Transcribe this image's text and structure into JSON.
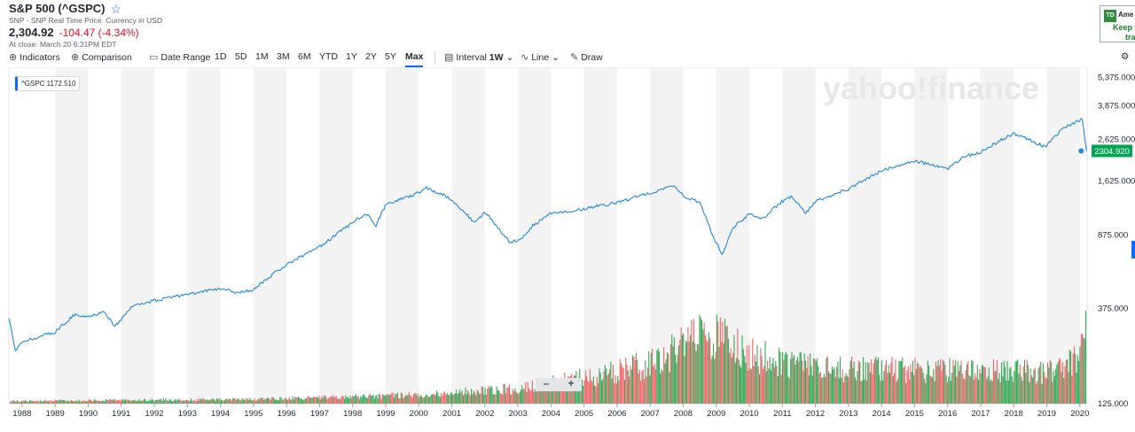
{
  "header": {
    "title": "S&P 500 (^GSPC)",
    "source": "SNP - SNP Real Time Price. Currency in USD",
    "price": "2,304.92",
    "change": "-104.47 (-4.34%)",
    "close_time": "At close: March 20 6:31PM EDT",
    "star_icon": "star-outline-icon"
  },
  "ad": {
    "logo": "TD",
    "name": "Ame",
    "line1": "Keep c",
    "line2": "tra"
  },
  "toolbar": {
    "indicators": "Indicators",
    "comparison": "Comparison",
    "date_range": "Date Range",
    "ranges": [
      "1D",
      "5D",
      "1M",
      "3M",
      "6M",
      "YTD",
      "1Y",
      "2Y",
      "5Y",
      "Max"
    ],
    "selected_range": "Max",
    "interval_label": "Interval",
    "interval_value": "1W",
    "chart_type": "Line",
    "draw": "Draw",
    "settings_icon": "gear-icon"
  },
  "legend_tag": "^GSPC  1172.510",
  "watermark": "yahoo!finance",
  "zoom": {
    "minus": "–",
    "plus": "+"
  },
  "colors": {
    "line": "#1e88e5",
    "accent": "#0f69ff",
    "up": "#35a756",
    "down": "#f06266",
    "last_badge": "#00a651",
    "negative": "#eb0f29"
  },
  "chart_data": {
    "type": "line",
    "title": "S&P 500 (^GSPC)",
    "x_tick_labels": [
      "1988",
      "1989",
      "1990",
      "1991",
      "1992",
      "1993",
      "1994",
      "1995",
      "1996",
      "1997",
      "1998",
      "1999",
      "2000",
      "2001",
      "2002",
      "2003",
      "2004",
      "2005",
      "2006",
      "2007",
      "2008",
      "2009",
      "2010",
      "2011",
      "2012",
      "2013",
      "2014",
      "2015",
      "2016",
      "2017",
      "2018",
      "2019",
      "2020"
    ],
    "y_tick_labels": [
      "5,375.000",
      "3,875.000",
      "2,625.000",
      "1,625.000",
      "875.000",
      "375.000",
      "125.000"
    ],
    "y_scale": "log",
    "last_value_label": "2304.920",
    "series": [
      {
        "name": "^GSPC",
        "points": [
          [
            1987.6,
            330
          ],
          [
            1987.8,
            230
          ],
          [
            1988.0,
            255
          ],
          [
            1988.5,
            270
          ],
          [
            1989.0,
            285
          ],
          [
            1989.6,
            350
          ],
          [
            1990.0,
            340
          ],
          [
            1990.5,
            360
          ],
          [
            1990.8,
            305
          ],
          [
            1991.0,
            330
          ],
          [
            1991.3,
            380
          ],
          [
            1992.0,
            410
          ],
          [
            1993.0,
            440
          ],
          [
            1994.0,
            470
          ],
          [
            1994.5,
            450
          ],
          [
            1995.0,
            465
          ],
          [
            1996.0,
            620
          ],
          [
            1997.0,
            760
          ],
          [
            1997.8,
            950
          ],
          [
            1998.4,
            1120
          ],
          [
            1998.7,
            970
          ],
          [
            1999.0,
            1230
          ],
          [
            1999.5,
            1330
          ],
          [
            2000.0,
            1420
          ],
          [
            2000.2,
            1510
          ],
          [
            2000.8,
            1380
          ],
          [
            2001.2,
            1220
          ],
          [
            2001.7,
            1000
          ],
          [
            2002.0,
            1140
          ],
          [
            2002.5,
            900
          ],
          [
            2002.75,
            800
          ],
          [
            2003.1,
            830
          ],
          [
            2003.4,
            960
          ],
          [
            2004.0,
            1120
          ],
          [
            2005.0,
            1180
          ],
          [
            2006.0,
            1270
          ],
          [
            2007.0,
            1420
          ],
          [
            2007.75,
            1540
          ],
          [
            2008.0,
            1370
          ],
          [
            2008.5,
            1270
          ],
          [
            2008.9,
            860
          ],
          [
            2009.2,
            690
          ],
          [
            2009.5,
            950
          ],
          [
            2010.0,
            1110
          ],
          [
            2010.4,
            1050
          ],
          [
            2011.0,
            1290
          ],
          [
            2011.3,
            1360
          ],
          [
            2011.7,
            1120
          ],
          [
            2012.0,
            1290
          ],
          [
            2013.0,
            1480
          ],
          [
            2014.0,
            1830
          ],
          [
            2015.0,
            2050
          ],
          [
            2016.0,
            1870
          ],
          [
            2016.5,
            2150
          ],
          [
            2017.0,
            2270
          ],
          [
            2018.0,
            2820
          ],
          [
            2018.95,
            2410
          ],
          [
            2019.5,
            2980
          ],
          [
            2020.1,
            3370
          ],
          [
            2020.2,
            2304.92
          ]
        ]
      }
    ],
    "volume_series": {
      "name": "Volume",
      "note": "weekly volume bars, green up weeks / red down weeks",
      "relative_levels": [
        [
          1987.6,
          0.03
        ],
        [
          1995.0,
          0.05
        ],
        [
          2000.0,
          0.1
        ],
        [
          2003.0,
          0.18
        ],
        [
          2005.0,
          0.3
        ],
        [
          2007.0,
          0.45
        ],
        [
          2008.8,
          0.8
        ],
        [
          2010.0,
          0.55
        ],
        [
          2012.0,
          0.4
        ],
        [
          2016.0,
          0.38
        ],
        [
          2019.0,
          0.36
        ],
        [
          2020.0,
          0.55
        ],
        [
          2020.2,
          0.85
        ]
      ]
    }
  }
}
